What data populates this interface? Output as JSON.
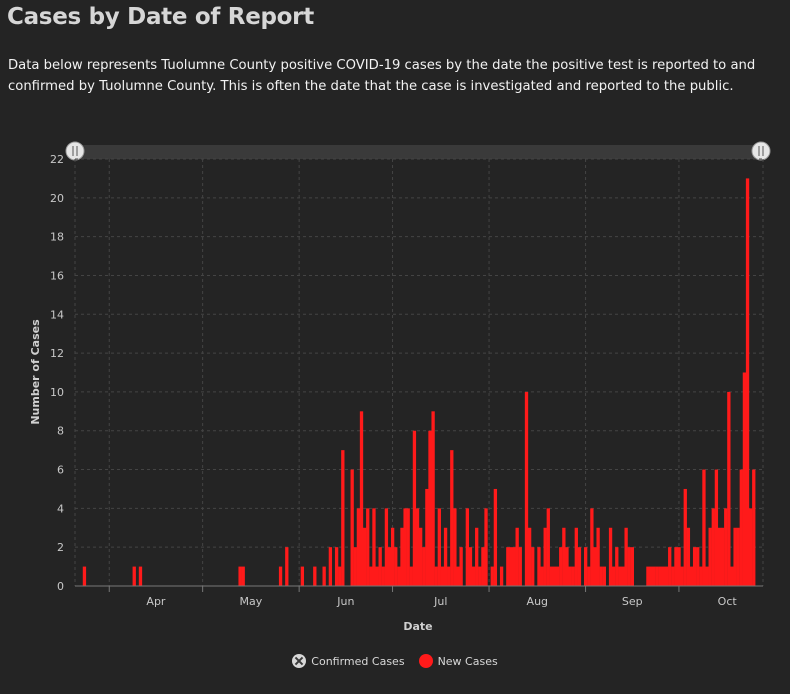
{
  "title": "Cases by Date of Report",
  "description": "Data below represents Tuolumne County positive COVID-19 cases by the date the positive test is reported to and confirmed by Tuolumne County. This is often the date that the case is investigated and reported to the public.",
  "colors": {
    "new_cases": "#ff1a1a",
    "background": "#242424",
    "grid": "#444444"
  },
  "legend": [
    {
      "label": "Confirmed Cases",
      "icon": "x-circle-icon"
    },
    {
      "label": "New Cases",
      "icon": "red-dot-icon"
    }
  ],
  "chart_data": {
    "type": "bar",
    "xlabel": "Date",
    "ylabel": "Number of Cases",
    "ylim": [
      0,
      22
    ],
    "yticks": [
      0,
      2,
      4,
      6,
      8,
      10,
      12,
      14,
      16,
      18,
      20,
      22
    ],
    "xlim": [
      "2020-03-21",
      "2020-10-28"
    ],
    "month_ticks": [
      "Apr",
      "May",
      "Jun",
      "Jul",
      "Aug",
      "Sep",
      "Oct"
    ],
    "grid": true,
    "legend_position": "bottom",
    "series": [
      {
        "name": "New Cases",
        "points": [
          [
            "2020-03-24",
            1
          ],
          [
            "2020-04-09",
            1
          ],
          [
            "2020-04-11",
            1
          ],
          [
            "2020-05-13",
            1
          ],
          [
            "2020-05-14",
            1
          ],
          [
            "2020-05-26",
            1
          ],
          [
            "2020-05-28",
            2
          ],
          [
            "2020-06-02",
            1
          ],
          [
            "2020-06-06",
            1
          ],
          [
            "2020-06-09",
            1
          ],
          [
            "2020-06-11",
            2
          ],
          [
            "2020-06-13",
            2
          ],
          [
            "2020-06-14",
            1
          ],
          [
            "2020-06-15",
            7
          ],
          [
            "2020-06-18",
            6
          ],
          [
            "2020-06-19",
            2
          ],
          [
            "2020-06-20",
            4
          ],
          [
            "2020-06-21",
            9
          ],
          [
            "2020-06-22",
            3
          ],
          [
            "2020-06-23",
            4
          ],
          [
            "2020-06-24",
            1
          ],
          [
            "2020-06-25",
            4
          ],
          [
            "2020-06-26",
            1
          ],
          [
            "2020-06-27",
            2
          ],
          [
            "2020-06-28",
            1
          ],
          [
            "2020-06-29",
            4
          ],
          [
            "2020-06-30",
            2
          ],
          [
            "2020-07-01",
            3
          ],
          [
            "2020-07-02",
            2
          ],
          [
            "2020-07-03",
            1
          ],
          [
            "2020-07-04",
            3
          ],
          [
            "2020-07-05",
            4
          ],
          [
            "2020-07-06",
            4
          ],
          [
            "2020-07-07",
            1
          ],
          [
            "2020-07-08",
            8
          ],
          [
            "2020-07-09",
            4
          ],
          [
            "2020-07-10",
            3
          ],
          [
            "2020-07-11",
            2
          ],
          [
            "2020-07-12",
            5
          ],
          [
            "2020-07-13",
            8
          ],
          [
            "2020-07-14",
            9
          ],
          [
            "2020-07-15",
            1
          ],
          [
            "2020-07-16",
            4
          ],
          [
            "2020-07-17",
            1
          ],
          [
            "2020-07-18",
            3
          ],
          [
            "2020-07-19",
            1
          ],
          [
            "2020-07-20",
            7
          ],
          [
            "2020-07-21",
            4
          ],
          [
            "2020-07-22",
            1
          ],
          [
            "2020-07-23",
            2
          ],
          [
            "2020-07-25",
            4
          ],
          [
            "2020-07-26",
            2
          ],
          [
            "2020-07-27",
            1
          ],
          [
            "2020-07-28",
            3
          ],
          [
            "2020-07-29",
            1
          ],
          [
            "2020-07-30",
            2
          ],
          [
            "2020-07-31",
            4
          ],
          [
            "2020-08-02",
            1
          ],
          [
            "2020-08-03",
            5
          ],
          [
            "2020-08-05",
            1
          ],
          [
            "2020-08-07",
            2
          ],
          [
            "2020-08-08",
            2
          ],
          [
            "2020-08-09",
            2
          ],
          [
            "2020-08-10",
            3
          ],
          [
            "2020-08-11",
            2
          ],
          [
            "2020-08-13",
            10
          ],
          [
            "2020-08-14",
            3
          ],
          [
            "2020-08-15",
            2
          ],
          [
            "2020-08-17",
            2
          ],
          [
            "2020-08-18",
            1
          ],
          [
            "2020-08-19",
            3
          ],
          [
            "2020-08-20",
            4
          ],
          [
            "2020-08-21",
            1
          ],
          [
            "2020-08-22",
            1
          ],
          [
            "2020-08-23",
            1
          ],
          [
            "2020-08-24",
            2
          ],
          [
            "2020-08-25",
            3
          ],
          [
            "2020-08-26",
            2
          ],
          [
            "2020-08-27",
            1
          ],
          [
            "2020-08-28",
            1
          ],
          [
            "2020-08-29",
            3
          ],
          [
            "2020-08-30",
            2
          ],
          [
            "2020-09-01",
            2
          ],
          [
            "2020-09-02",
            1
          ],
          [
            "2020-09-03",
            4
          ],
          [
            "2020-09-04",
            2
          ],
          [
            "2020-09-05",
            3
          ],
          [
            "2020-09-06",
            1
          ],
          [
            "2020-09-07",
            1
          ],
          [
            "2020-09-09",
            3
          ],
          [
            "2020-09-10",
            1
          ],
          [
            "2020-09-11",
            2
          ],
          [
            "2020-09-12",
            1
          ],
          [
            "2020-09-13",
            1
          ],
          [
            "2020-09-14",
            3
          ],
          [
            "2020-09-15",
            2
          ],
          [
            "2020-09-16",
            2
          ],
          [
            "2020-09-21",
            1
          ],
          [
            "2020-09-22",
            1
          ],
          [
            "2020-09-23",
            1
          ],
          [
            "2020-09-24",
            1
          ],
          [
            "2020-09-25",
            1
          ],
          [
            "2020-09-26",
            1
          ],
          [
            "2020-09-27",
            1
          ],
          [
            "2020-09-28",
            2
          ],
          [
            "2020-09-29",
            1
          ],
          [
            "2020-09-30",
            2
          ],
          [
            "2020-10-01",
            2
          ],
          [
            "2020-10-02",
            1
          ],
          [
            "2020-10-03",
            5
          ],
          [
            "2020-10-04",
            3
          ],
          [
            "2020-10-05",
            1
          ],
          [
            "2020-10-06",
            2
          ],
          [
            "2020-10-07",
            2
          ],
          [
            "2020-10-08",
            1
          ],
          [
            "2020-10-09",
            6
          ],
          [
            "2020-10-10",
            1
          ],
          [
            "2020-10-11",
            3
          ],
          [
            "2020-10-12",
            4
          ],
          [
            "2020-10-13",
            6
          ],
          [
            "2020-10-14",
            3
          ],
          [
            "2020-10-15",
            3
          ],
          [
            "2020-10-16",
            4
          ],
          [
            "2020-10-17",
            10
          ],
          [
            "2020-10-18",
            1
          ],
          [
            "2020-10-19",
            3
          ],
          [
            "2020-10-20",
            3
          ],
          [
            "2020-10-21",
            6
          ],
          [
            "2020-10-22",
            11
          ],
          [
            "2020-10-23",
            21
          ],
          [
            "2020-10-24",
            4
          ],
          [
            "2020-10-25",
            6
          ]
        ]
      },
      {
        "name": "Confirmed Cases",
        "points": []
      }
    ]
  }
}
